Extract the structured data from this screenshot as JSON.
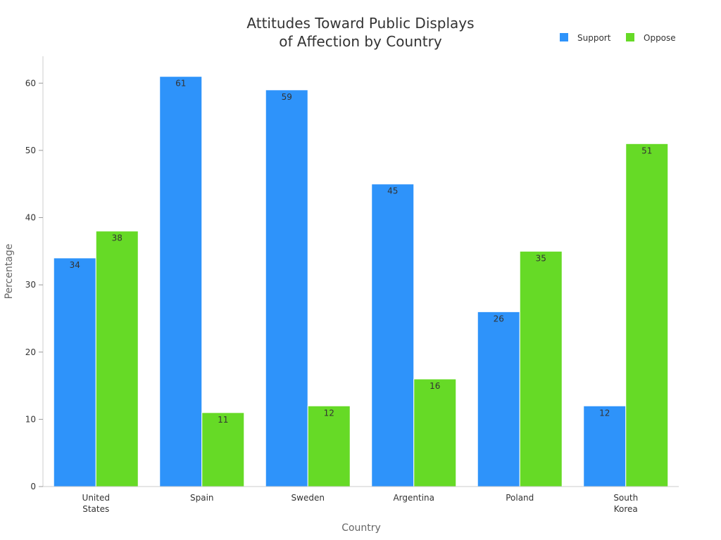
{
  "chart_data": {
    "type": "bar",
    "title_lines": [
      "Attitudes Toward Public Displays",
      "of Affection by Country"
    ],
    "xlabel": "Country",
    "ylabel": "Percentage",
    "categories": [
      [
        "United",
        "States"
      ],
      [
        "Spain"
      ],
      [
        "Sweden"
      ],
      [
        "Argentina"
      ],
      [
        "Poland"
      ],
      [
        "South",
        "Korea"
      ]
    ],
    "series": [
      {
        "name": "Support",
        "color": "#2e93fa",
        "values": [
          34,
          61,
          59,
          45,
          26,
          12
        ]
      },
      {
        "name": "Oppose",
        "color": "#66da26",
        "values": [
          38,
          11,
          12,
          16,
          35,
          51
        ]
      }
    ],
    "ylim": [
      0,
      64
    ],
    "yticks": [
      0,
      10,
      20,
      30,
      40,
      50,
      60
    ],
    "grid": false,
    "legend_position": "top-right",
    "data_labels": true
  }
}
